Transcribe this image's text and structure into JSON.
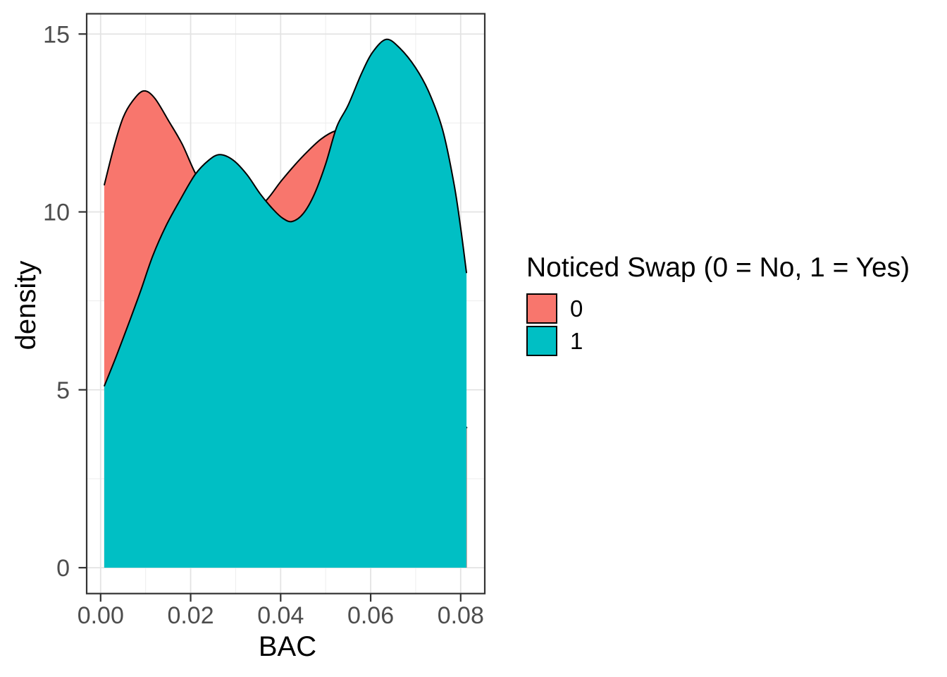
{
  "chart_data": {
    "type": "area",
    "subtype": "overlapping-density-curves",
    "title": "",
    "xlabel": "BAC",
    "ylabel": "density",
    "xlim": [
      0,
      0.0815
    ],
    "ylim": [
      0,
      15
    ],
    "grid": "major-and-minor",
    "panel_border": true,
    "legend_position": "right",
    "legend_title": "Noticed Swap (0 = No, 1 = Yes)",
    "x_axis": {
      "tick_values": [
        0,
        0.02,
        0.04,
        0.06,
        0.08
      ],
      "tick_labels": [
        "0.00",
        "0.02",
        "0.04",
        "0.06",
        "0.08"
      ],
      "minor_values": [
        0.01,
        0.03,
        0.05,
        0.07
      ]
    },
    "y_axis": {
      "tick_values": [
        0,
        5,
        10,
        15
      ],
      "tick_labels": [
        "0",
        "5",
        "10",
        "15"
      ],
      "minor_values": [
        2.5,
        7.5,
        12.5
      ]
    },
    "colors": {
      "outline": "#000000",
      "panel_border": "#333333",
      "grid_major": "#E3E3E3",
      "grid_minor": "#EDEDED",
      "tick_text": "#4D4D4D",
      "axis_text": "#000000"
    },
    "series": [
      {
        "name": "0",
        "fill": "#F8766D",
        "outline": "#000000",
        "baseline": 0,
        "points": [
          [
            0.0008,
            10.75
          ],
          [
            0.003,
            11.85
          ],
          [
            0.005,
            12.65
          ],
          [
            0.007,
            13.1
          ],
          [
            0.0095,
            13.4
          ],
          [
            0.012,
            13.2
          ],
          [
            0.0152,
            12.54
          ],
          [
            0.0181,
            11.91
          ],
          [
            0.021,
            11.1
          ],
          [
            0.024,
            10.5
          ],
          [
            0.027,
            10.12
          ],
          [
            0.03,
            9.95
          ],
          [
            0.033,
            10.02
          ],
          [
            0.0366,
            10.3
          ],
          [
            0.04,
            10.85
          ],
          [
            0.043,
            11.3
          ],
          [
            0.046,
            11.7
          ],
          [
            0.049,
            12.05
          ],
          [
            0.052,
            12.27
          ],
          [
            0.055,
            12.3
          ],
          [
            0.058,
            11.9
          ],
          [
            0.062,
            10.8
          ],
          [
            0.066,
            9.2
          ],
          [
            0.07,
            7.5
          ],
          [
            0.074,
            5.9
          ],
          [
            0.078,
            4.6
          ],
          [
            0.0814,
            3.92
          ]
        ]
      },
      {
        "name": "1",
        "fill": "#00BFC4",
        "outline": "#000000",
        "baseline": 0,
        "points": [
          [
            0.0008,
            5.1
          ],
          [
            0.0035,
            5.95
          ],
          [
            0.0064,
            6.92
          ],
          [
            0.009,
            7.82
          ],
          [
            0.0116,
            8.77
          ],
          [
            0.0145,
            9.6
          ],
          [
            0.0175,
            10.3
          ],
          [
            0.021,
            11.05
          ],
          [
            0.024,
            11.45
          ],
          [
            0.0265,
            11.61
          ],
          [
            0.0295,
            11.45
          ],
          [
            0.0325,
            11.05
          ],
          [
            0.0355,
            10.5
          ],
          [
            0.0385,
            10.05
          ],
          [
            0.0405,
            9.82
          ],
          [
            0.0425,
            9.73
          ],
          [
            0.045,
            9.95
          ],
          [
            0.0475,
            10.5
          ],
          [
            0.05,
            11.35
          ],
          [
            0.0525,
            12.4
          ],
          [
            0.055,
            13.0
          ],
          [
            0.058,
            13.9
          ],
          [
            0.0605,
            14.5
          ],
          [
            0.0635,
            14.85
          ],
          [
            0.0665,
            14.6
          ],
          [
            0.07,
            14.05
          ],
          [
            0.073,
            13.35
          ],
          [
            0.076,
            12.3
          ],
          [
            0.0785,
            10.8
          ],
          [
            0.08,
            9.55
          ],
          [
            0.0813,
            8.28
          ]
        ]
      }
    ]
  }
}
